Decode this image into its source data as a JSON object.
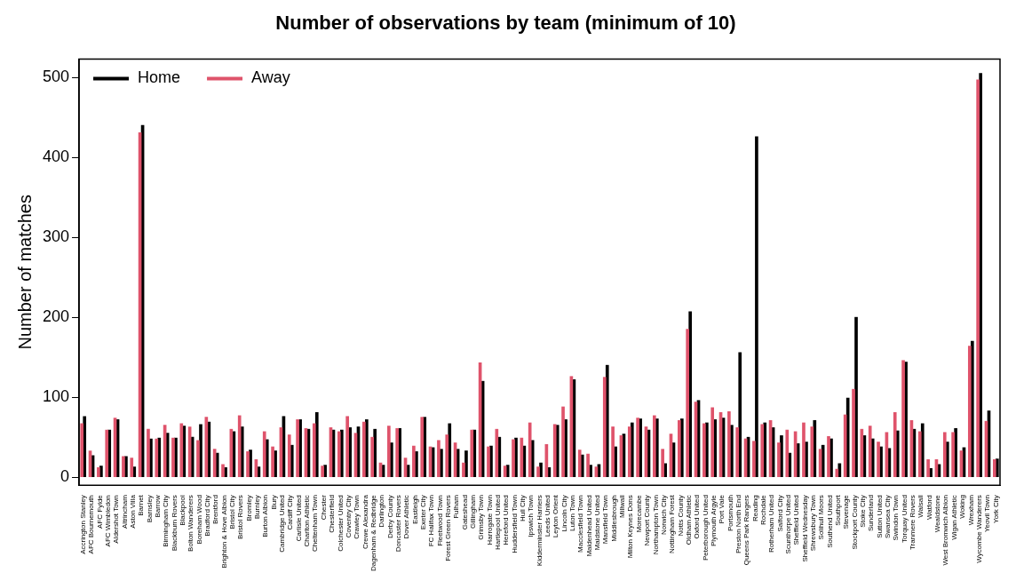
{
  "chart_data": {
    "type": "bar",
    "title": "Number of observations by team (minimum of 10)",
    "ylabel": "Number of matches",
    "categories": [
      "Accrington Stanley",
      "AFC Bournemouth",
      "AFC Fylde",
      "AFC Wimbledon",
      "Aldershot Town",
      "Altrincham",
      "Aston Villa",
      "Barnet",
      "Barnsley",
      "Barrow",
      "Birmingham City",
      "Blackburn Rovers",
      "Blackpool",
      "Bolton Wanderers",
      "Boreham Wood",
      "Bradford City",
      "Brentford",
      "Brighton & Hove Albion",
      "Bristol City",
      "Bristol Rovers",
      "Bromley",
      "Burnley",
      "Burton Albion",
      "Bury",
      "Cambridge United",
      "Cardiff City",
      "Carlisle United",
      "Charlton Athletic",
      "Cheltenham Town",
      "Chester",
      "Chesterfield",
      "Colchester United",
      "Coventry City",
      "Crawley Town",
      "Crewe Alexandra",
      "Dagenham & Redbridge",
      "Darlington",
      "Derby County",
      "Doncaster Rovers",
      "Dover Athletic",
      "Eastleigh",
      "Exeter City",
      "FC Halifax Town",
      "Fleetwood Town",
      "Forest Green Rovers",
      "Fulham",
      "Gateshead",
      "Gillingham",
      "Grimsby Town",
      "Harrogate Town",
      "Hartlepool United",
      "Hereford United",
      "Huddersfield Town",
      "Hull City",
      "Ipswich Town",
      "Kidderminster Harriers",
      "Leeds United",
      "Leyton Orient",
      "Lincoln City",
      "Luton Town",
      "Macclesfield Town",
      "Maidenhead United",
      "Maidstone United",
      "Mansfield Town",
      "Middlesbrough",
      "Millwall",
      "Milton Keynes Dons",
      "Morecambe",
      "Newport County",
      "Northampton Town",
      "Norwich City",
      "Nottingham Forest",
      "Notts County",
      "Oldham Athletic",
      "Oxford United",
      "Peterborough United",
      "Plymouth Argyle",
      "Port Vale",
      "Portsmouth",
      "Preston North End",
      "Queens Park Rangers",
      "Reading",
      "Rochdale",
      "Rotherham United",
      "Salford City",
      "Scunthorpe United",
      "Sheffield United",
      "Sheffield Wednesday",
      "Shrewsbury Town",
      "Solihull Moors",
      "Southend United",
      "Southport",
      "Stevenage",
      "Stockport County",
      "Stoke City",
      "Sunderland",
      "Sutton United",
      "Swansea City",
      "Swindon Town",
      "Torquay United",
      "Tranmere Rovers",
      "Walsall",
      "Watford",
      "Wealdstone",
      "West Bromwich Albion",
      "Wigan Athletic",
      "Woking",
      "Wrexham",
      "Wycombe Wanderers",
      "Yeovil Town",
      "York City"
    ],
    "series": [
      {
        "name": "Home",
        "color": "#000000",
        "values": [
          76,
          27,
          14,
          59,
          72,
          26,
          13,
          440,
          48,
          49,
          55,
          49,
          64,
          50,
          66,
          69,
          30,
          12,
          57,
          63,
          34,
          13,
          47,
          33,
          76,
          40,
          72,
          60,
          81,
          15,
          59,
          59,
          62,
          63,
          72,
          60,
          15,
          43,
          61,
          15,
          32,
          75,
          37,
          35,
          67,
          35,
          33,
          59,
          120,
          39,
          50,
          15,
          49,
          39,
          46,
          18,
          12,
          65,
          72,
          122,
          28,
          15,
          16,
          140,
          38,
          54,
          68,
          73,
          59,
          73,
          17,
          43,
          73,
          207,
          96,
          68,
          72,
          74,
          65,
          156,
          50,
          426,
          68,
          62,
          52,
          30,
          42,
          44,
          71,
          40,
          48,
          17,
          99,
          200,
          52,
          48,
          38,
          36,
          58,
          144,
          60,
          67,
          11,
          16,
          44,
          61,
          37,
          170,
          505,
          83,
          23
        ]
      },
      {
        "name": "Away",
        "color": "#df536b",
        "values": [
          67,
          33,
          12,
          59,
          74,
          26,
          24,
          431,
          60,
          48,
          65,
          49,
          67,
          63,
          46,
          75,
          35,
          16,
          60,
          77,
          32,
          22,
          57,
          38,
          62,
          53,
          72,
          61,
          67,
          14,
          62,
          57,
          76,
          55,
          69,
          50,
          18,
          64,
          61,
          24,
          39,
          75,
          38,
          46,
          53,
          43,
          18,
          59,
          143,
          38,
          60,
          14,
          47,
          49,
          68,
          13,
          41,
          66,
          88,
          126,
          34,
          29,
          13,
          125,
          63,
          52,
          63,
          74,
          63,
          77,
          35,
          54,
          71,
          185,
          94,
          67,
          87,
          81,
          82,
          62,
          48,
          45,
          66,
          71,
          43,
          59,
          57,
          68,
          63,
          35,
          51,
          10,
          78,
          110,
          60,
          64,
          44,
          56,
          81,
          146,
          71,
          57,
          22,
          22,
          56,
          56,
          33,
          164,
          497,
          70,
          22
        ]
      }
    ],
    "ylim": [
      -10,
      523
    ],
    "yticks": [
      0,
      100,
      200,
      300,
      400,
      500
    ],
    "grid": false,
    "legend": "top left"
  }
}
